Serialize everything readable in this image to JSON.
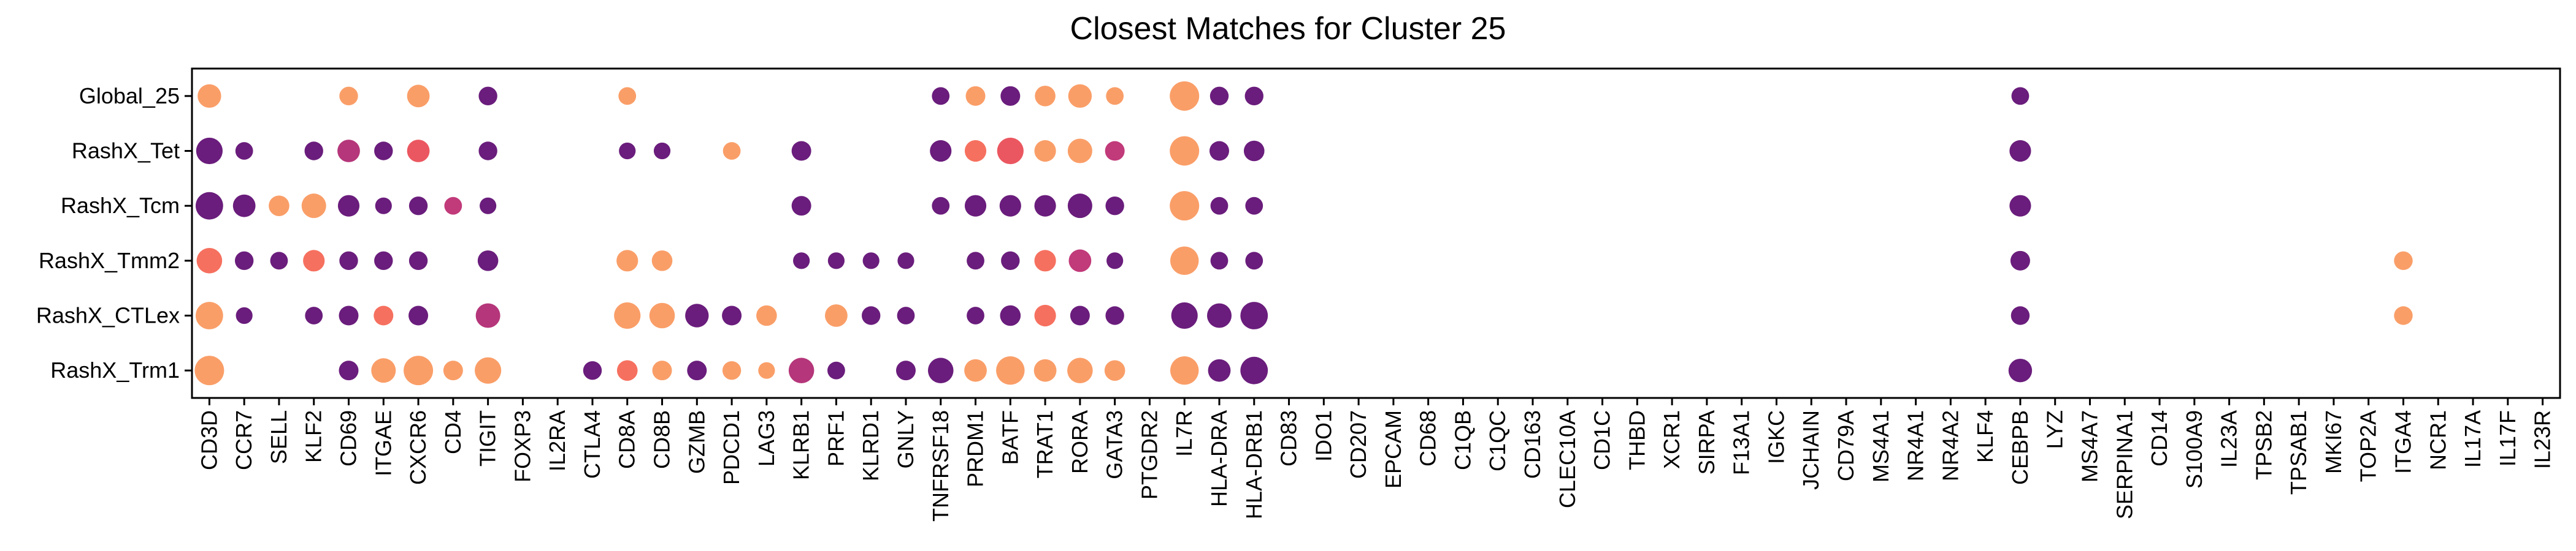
{
  "chart_data": {
    "type": "dot",
    "title": "Closest Matches for Cluster 25",
    "xlabel": "",
    "ylabel": "",
    "legend": "none",
    "grid": false,
    "rows": [
      "Global_25",
      "RashX_Tet",
      "RashX_Tcm",
      "RashX_Tmm2",
      "RashX_CTLex",
      "RashX_Trm1"
    ],
    "columns": [
      "CD3D",
      "CCR7",
      "SELL",
      "KLF2",
      "CD69",
      "ITGAE",
      "CXCR6",
      "CD4",
      "TIGIT",
      "FOXP3",
      "IL2RA",
      "CTLA4",
      "CD8A",
      "CD8B",
      "GZMB",
      "PDCD1",
      "LAG3",
      "KLRB1",
      "PRF1",
      "KLRD1",
      "GNLY",
      "TNFRSF18",
      "PRDM1",
      "BATF",
      "TRAT1",
      "RORA",
      "GATA3",
      "PTGDR2",
      "IL7R",
      "HLA-DRA",
      "HLA-DRB1",
      "CD83",
      "IDO1",
      "CD207",
      "EPCAM",
      "CD68",
      "C1QB",
      "C1QC",
      "CD163",
      "CLEC10A",
      "CD1C",
      "THBD",
      "XCR1",
      "SIRPA",
      "F13A1",
      "IGKC",
      "JCHAIN",
      "CD79A",
      "MS4A1",
      "NR4A1",
      "NR4A2",
      "KLF4",
      "CEBPB",
      "LYZ",
      "MS4A7",
      "SERPINA1",
      "CD14",
      "S100A9",
      "IL23A",
      "TPSB2",
      "TPSAB1",
      "MKI67",
      "TOP2A",
      "ITGA4",
      "NCR1",
      "IL17A",
      "IL17F",
      "IL23R"
    ],
    "points": [
      {
        "row": "Global_25",
        "col": "CD3D",
        "size": 0.7,
        "color": "#FA9E68"
      },
      {
        "row": "Global_25",
        "col": "CD69",
        "size": 0.45,
        "color": "#FA9E68"
      },
      {
        "row": "Global_25",
        "col": "CXCR6",
        "size": 0.65,
        "color": "#FA9E68"
      },
      {
        "row": "Global_25",
        "col": "TIGIT",
        "size": 0.45,
        "color": "#6A1D7C"
      },
      {
        "row": "Global_25",
        "col": "CD8A",
        "size": 0.4,
        "color": "#FA9E68"
      },
      {
        "row": "Global_25",
        "col": "TNFRSF18",
        "size": 0.4,
        "color": "#6A1D7C"
      },
      {
        "row": "Global_25",
        "col": "PRDM1",
        "size": 0.5,
        "color": "#FA9E68"
      },
      {
        "row": "Global_25",
        "col": "BATF",
        "size": 0.5,
        "color": "#6A1D7C"
      },
      {
        "row": "Global_25",
        "col": "TRAT1",
        "size": 0.55,
        "color": "#FA9E68"
      },
      {
        "row": "Global_25",
        "col": "RORA",
        "size": 0.7,
        "color": "#FA9E68"
      },
      {
        "row": "Global_25",
        "col": "GATA3",
        "size": 0.4,
        "color": "#FA9E68"
      },
      {
        "row": "Global_25",
        "col": "IL7R",
        "size": 1.0,
        "color": "#FA9E68"
      },
      {
        "row": "Global_25",
        "col": "HLA-DRA",
        "size": 0.45,
        "color": "#6A1D7C"
      },
      {
        "row": "Global_25",
        "col": "HLA-DRB1",
        "size": 0.45,
        "color": "#6A1D7C"
      },
      {
        "row": "Global_25",
        "col": "CEBPB",
        "size": 0.4,
        "color": "#6A1D7C"
      },
      {
        "row": "RashX_Tet",
        "col": "CD3D",
        "size": 0.85,
        "color": "#6A1D7C"
      },
      {
        "row": "RashX_Tet",
        "col": "CCR7",
        "size": 0.4,
        "color": "#6A1D7C"
      },
      {
        "row": "RashX_Tet",
        "col": "KLF2",
        "size": 0.45,
        "color": "#6A1D7C"
      },
      {
        "row": "RashX_Tet",
        "col": "CD69",
        "size": 0.65,
        "color": "#B5367A"
      },
      {
        "row": "RashX_Tet",
        "col": "ITGAE",
        "size": 0.45,
        "color": "#6A1D7C"
      },
      {
        "row": "RashX_Tet",
        "col": "CXCR6",
        "size": 0.65,
        "color": "#EB5760"
      },
      {
        "row": "RashX_Tet",
        "col": "TIGIT",
        "size": 0.45,
        "color": "#6A1D7C"
      },
      {
        "row": "RashX_Tet",
        "col": "CD8A",
        "size": 0.35,
        "color": "#6A1D7C"
      },
      {
        "row": "RashX_Tet",
        "col": "CD8B",
        "size": 0.35,
        "color": "#6A1D7C"
      },
      {
        "row": "RashX_Tet",
        "col": "PDCD1",
        "size": 0.4,
        "color": "#FA9E68"
      },
      {
        "row": "RashX_Tet",
        "col": "KLRB1",
        "size": 0.5,
        "color": "#6A1D7C"
      },
      {
        "row": "RashX_Tet",
        "col": "TNFRSF18",
        "size": 0.6,
        "color": "#6A1D7C"
      },
      {
        "row": "RashX_Tet",
        "col": "PRDM1",
        "size": 0.6,
        "color": "#F6705F"
      },
      {
        "row": "RashX_Tet",
        "col": "BATF",
        "size": 0.85,
        "color": "#EB5760"
      },
      {
        "row": "RashX_Tet",
        "col": "TRAT1",
        "size": 0.6,
        "color": "#FA9E68"
      },
      {
        "row": "RashX_Tet",
        "col": "RORA",
        "size": 0.75,
        "color": "#FA9E68"
      },
      {
        "row": "RashX_Tet",
        "col": "GATA3",
        "size": 0.5,
        "color": "#C13A7A"
      },
      {
        "row": "RashX_Tet",
        "col": "IL7R",
        "size": 1.0,
        "color": "#FA9E68"
      },
      {
        "row": "RashX_Tet",
        "col": "HLA-DRA",
        "size": 0.5,
        "color": "#6A1D7C"
      },
      {
        "row": "RashX_Tet",
        "col": "HLA-DRB1",
        "size": 0.55,
        "color": "#6A1D7C"
      },
      {
        "row": "RashX_Tet",
        "col": "CEBPB",
        "size": 0.6,
        "color": "#6A1D7C"
      },
      {
        "row": "RashX_Tcm",
        "col": "CD3D",
        "size": 0.9,
        "color": "#6A1D7C"
      },
      {
        "row": "RashX_Tcm",
        "col": "CCR7",
        "size": 0.65,
        "color": "#6A1D7C"
      },
      {
        "row": "RashX_Tcm",
        "col": "SELL",
        "size": 0.55,
        "color": "#FA9E68"
      },
      {
        "row": "RashX_Tcm",
        "col": "KLF2",
        "size": 0.75,
        "color": "#FA9E68"
      },
      {
        "row": "RashX_Tcm",
        "col": "CD69",
        "size": 0.6,
        "color": "#6A1D7C"
      },
      {
        "row": "RashX_Tcm",
        "col": "ITGAE",
        "size": 0.35,
        "color": "#6A1D7C"
      },
      {
        "row": "RashX_Tcm",
        "col": "CXCR6",
        "size": 0.45,
        "color": "#6A1D7C"
      },
      {
        "row": "RashX_Tcm",
        "col": "CD4",
        "size": 0.4,
        "color": "#C13A7A"
      },
      {
        "row": "RashX_Tcm",
        "col": "TIGIT",
        "size": 0.35,
        "color": "#6A1D7C"
      },
      {
        "row": "RashX_Tcm",
        "col": "KLRB1",
        "size": 0.5,
        "color": "#6A1D7C"
      },
      {
        "row": "RashX_Tcm",
        "col": "TNFRSF18",
        "size": 0.4,
        "color": "#6A1D7C"
      },
      {
        "row": "RashX_Tcm",
        "col": "PRDM1",
        "size": 0.6,
        "color": "#6A1D7C"
      },
      {
        "row": "RashX_Tcm",
        "col": "BATF",
        "size": 0.6,
        "color": "#6A1D7C"
      },
      {
        "row": "RashX_Tcm",
        "col": "TRAT1",
        "size": 0.6,
        "color": "#6A1D7C"
      },
      {
        "row": "RashX_Tcm",
        "col": "RORA",
        "size": 0.75,
        "color": "#6A1D7C"
      },
      {
        "row": "RashX_Tcm",
        "col": "GATA3",
        "size": 0.45,
        "color": "#6A1D7C"
      },
      {
        "row": "RashX_Tcm",
        "col": "IL7R",
        "size": 1.0,
        "color": "#FA9E68"
      },
      {
        "row": "RashX_Tcm",
        "col": "HLA-DRA",
        "size": 0.4,
        "color": "#6A1D7C"
      },
      {
        "row": "RashX_Tcm",
        "col": "HLA-DRB1",
        "size": 0.4,
        "color": "#6A1D7C"
      },
      {
        "row": "RashX_Tcm",
        "col": "CEBPB",
        "size": 0.6,
        "color": "#6A1D7C"
      },
      {
        "row": "RashX_Tmm2",
        "col": "CD3D",
        "size": 0.8,
        "color": "#F6705F"
      },
      {
        "row": "RashX_Tmm2",
        "col": "CCR7",
        "size": 0.45,
        "color": "#6A1D7C"
      },
      {
        "row": "RashX_Tmm2",
        "col": "SELL",
        "size": 0.4,
        "color": "#6A1D7C"
      },
      {
        "row": "RashX_Tmm2",
        "col": "KLF2",
        "size": 0.6,
        "color": "#F6705F"
      },
      {
        "row": "RashX_Tmm2",
        "col": "CD69",
        "size": 0.45,
        "color": "#6A1D7C"
      },
      {
        "row": "RashX_Tmm2",
        "col": "ITGAE",
        "size": 0.45,
        "color": "#6A1D7C"
      },
      {
        "row": "RashX_Tmm2",
        "col": "CXCR6",
        "size": 0.45,
        "color": "#6A1D7C"
      },
      {
        "row": "RashX_Tmm2",
        "col": "TIGIT",
        "size": 0.55,
        "color": "#6A1D7C"
      },
      {
        "row": "RashX_Tmm2",
        "col": "CD8A",
        "size": 0.6,
        "color": "#FA9E68"
      },
      {
        "row": "RashX_Tmm2",
        "col": "CD8B",
        "size": 0.55,
        "color": "#FA9E68"
      },
      {
        "row": "RashX_Tmm2",
        "col": "KLRB1",
        "size": 0.35,
        "color": "#6A1D7C"
      },
      {
        "row": "RashX_Tmm2",
        "col": "PRF1",
        "size": 0.35,
        "color": "#6A1D7C"
      },
      {
        "row": "RashX_Tmm2",
        "col": "KLRD1",
        "size": 0.35,
        "color": "#6A1D7C"
      },
      {
        "row": "RashX_Tmm2",
        "col": "GNLY",
        "size": 0.35,
        "color": "#6A1D7C"
      },
      {
        "row": "RashX_Tmm2",
        "col": "PRDM1",
        "size": 0.4,
        "color": "#6A1D7C"
      },
      {
        "row": "RashX_Tmm2",
        "col": "BATF",
        "size": 0.45,
        "color": "#6A1D7C"
      },
      {
        "row": "RashX_Tmm2",
        "col": "TRAT1",
        "size": 0.6,
        "color": "#F6705F"
      },
      {
        "row": "RashX_Tmm2",
        "col": "RORA",
        "size": 0.65,
        "color": "#C13A7A"
      },
      {
        "row": "RashX_Tmm2",
        "col": "GATA3",
        "size": 0.35,
        "color": "#6A1D7C"
      },
      {
        "row": "RashX_Tmm2",
        "col": "IL7R",
        "size": 0.95,
        "color": "#FA9E68"
      },
      {
        "row": "RashX_Tmm2",
        "col": "HLA-DRA",
        "size": 0.4,
        "color": "#6A1D7C"
      },
      {
        "row": "RashX_Tmm2",
        "col": "HLA-DRB1",
        "size": 0.4,
        "color": "#6A1D7C"
      },
      {
        "row": "RashX_Tmm2",
        "col": "CEBPB",
        "size": 0.5,
        "color": "#6A1D7C"
      },
      {
        "row": "RashX_Tmm2",
        "col": "ITGA4",
        "size": 0.45,
        "color": "#FA9E68"
      },
      {
        "row": "RashX_CTLex",
        "col": "CD3D",
        "size": 0.9,
        "color": "#FA9E68"
      },
      {
        "row": "RashX_CTLex",
        "col": "CCR7",
        "size": 0.35,
        "color": "#6A1D7C"
      },
      {
        "row": "RashX_CTLex",
        "col": "KLF2",
        "size": 0.4,
        "color": "#6A1D7C"
      },
      {
        "row": "RashX_CTLex",
        "col": "CD69",
        "size": 0.5,
        "color": "#6A1D7C"
      },
      {
        "row": "RashX_CTLex",
        "col": "ITGAE",
        "size": 0.5,
        "color": "#F6705F"
      },
      {
        "row": "RashX_CTLex",
        "col": "CXCR6",
        "size": 0.5,
        "color": "#6A1D7C"
      },
      {
        "row": "RashX_CTLex",
        "col": "TIGIT",
        "size": 0.75,
        "color": "#B5367A"
      },
      {
        "row": "RashX_CTLex",
        "col": "CD8A",
        "size": 0.85,
        "color": "#FA9E68"
      },
      {
        "row": "RashX_CTLex",
        "col": "CD8B",
        "size": 0.8,
        "color": "#FA9E68"
      },
      {
        "row": "RashX_CTLex",
        "col": "GZMB",
        "size": 0.7,
        "color": "#6A1D7C"
      },
      {
        "row": "RashX_CTLex",
        "col": "PDCD1",
        "size": 0.5,
        "color": "#6A1D7C"
      },
      {
        "row": "RashX_CTLex",
        "col": "LAG3",
        "size": 0.55,
        "color": "#FA9E68"
      },
      {
        "row": "RashX_CTLex",
        "col": "PRF1",
        "size": 0.65,
        "color": "#FA9E68"
      },
      {
        "row": "RashX_CTLex",
        "col": "KLRD1",
        "size": 0.45,
        "color": "#6A1D7C"
      },
      {
        "row": "RashX_CTLex",
        "col": "GNLY",
        "size": 0.4,
        "color": "#6A1D7C"
      },
      {
        "row": "RashX_CTLex",
        "col": "PRDM1",
        "size": 0.4,
        "color": "#6A1D7C"
      },
      {
        "row": "RashX_CTLex",
        "col": "BATF",
        "size": 0.55,
        "color": "#6A1D7C"
      },
      {
        "row": "RashX_CTLex",
        "col": "TRAT1",
        "size": 0.6,
        "color": "#F6705F"
      },
      {
        "row": "RashX_CTLex",
        "col": "RORA",
        "size": 0.5,
        "color": "#6A1D7C"
      },
      {
        "row": "RashX_CTLex",
        "col": "GATA3",
        "size": 0.45,
        "color": "#6A1D7C"
      },
      {
        "row": "RashX_CTLex",
        "col": "IL7R",
        "size": 0.85,
        "color": "#6A1D7C"
      },
      {
        "row": "RashX_CTLex",
        "col": "HLA-DRA",
        "size": 0.75,
        "color": "#6A1D7C"
      },
      {
        "row": "RashX_CTLex",
        "col": "HLA-DRB1",
        "size": 0.9,
        "color": "#6A1D7C"
      },
      {
        "row": "RashX_CTLex",
        "col": "CEBPB",
        "size": 0.45,
        "color": "#6A1D7C"
      },
      {
        "row": "RashX_CTLex",
        "col": "ITGA4",
        "size": 0.45,
        "color": "#FA9E68"
      },
      {
        "row": "RashX_Trm1",
        "col": "CD3D",
        "size": 1.0,
        "color": "#FA9E68"
      },
      {
        "row": "RashX_Trm1",
        "col": "CD69",
        "size": 0.5,
        "color": "#6A1D7C"
      },
      {
        "row": "RashX_Trm1",
        "col": "ITGAE",
        "size": 0.75,
        "color": "#FA9E68"
      },
      {
        "row": "RashX_Trm1",
        "col": "CXCR6",
        "size": 1.0,
        "color": "#FA9E68"
      },
      {
        "row": "RashX_Trm1",
        "col": "CD4",
        "size": 0.5,
        "color": "#FA9E68"
      },
      {
        "row": "RashX_Trm1",
        "col": "TIGIT",
        "size": 0.85,
        "color": "#FA9E68"
      },
      {
        "row": "RashX_Trm1",
        "col": "CTLA4",
        "size": 0.45,
        "color": "#6A1D7C"
      },
      {
        "row": "RashX_Trm1",
        "col": "CD8A",
        "size": 0.55,
        "color": "#F6705F"
      },
      {
        "row": "RashX_Trm1",
        "col": "CD8B",
        "size": 0.5,
        "color": "#FA9E68"
      },
      {
        "row": "RashX_Trm1",
        "col": "GZMB",
        "size": 0.5,
        "color": "#6A1D7C"
      },
      {
        "row": "RashX_Trm1",
        "col": "PDCD1",
        "size": 0.45,
        "color": "#FA9E68"
      },
      {
        "row": "RashX_Trm1",
        "col": "LAG3",
        "size": 0.35,
        "color": "#FA9E68"
      },
      {
        "row": "RashX_Trm1",
        "col": "KLRB1",
        "size": 0.8,
        "color": "#B5367A"
      },
      {
        "row": "RashX_Trm1",
        "col": "PRF1",
        "size": 0.4,
        "color": "#6A1D7C"
      },
      {
        "row": "RashX_Trm1",
        "col": "GNLY",
        "size": 0.5,
        "color": "#6A1D7C"
      },
      {
        "row": "RashX_Trm1",
        "col": "TNFRSF18",
        "size": 0.8,
        "color": "#6A1D7C"
      },
      {
        "row": "RashX_Trm1",
        "col": "PRDM1",
        "size": 0.65,
        "color": "#FA9E68"
      },
      {
        "row": "RashX_Trm1",
        "col": "BATF",
        "size": 0.95,
        "color": "#FA9E68"
      },
      {
        "row": "RashX_Trm1",
        "col": "TRAT1",
        "size": 0.65,
        "color": "#FA9E68"
      },
      {
        "row": "RashX_Trm1",
        "col": "RORA",
        "size": 0.8,
        "color": "#FA9E68"
      },
      {
        "row": "RashX_Trm1",
        "col": "GATA3",
        "size": 0.55,
        "color": "#FA9E68"
      },
      {
        "row": "RashX_Trm1",
        "col": "IL7R",
        "size": 0.95,
        "color": "#FA9E68"
      },
      {
        "row": "RashX_Trm1",
        "col": "HLA-DRA",
        "size": 0.65,
        "color": "#6A1D7C"
      },
      {
        "row": "RashX_Trm1",
        "col": "HLA-DRB1",
        "size": 0.9,
        "color": "#6A1D7C"
      },
      {
        "row": "RashX_Trm1",
        "col": "CEBPB",
        "size": 0.7,
        "color": "#6A1D7C"
      }
    ]
  }
}
